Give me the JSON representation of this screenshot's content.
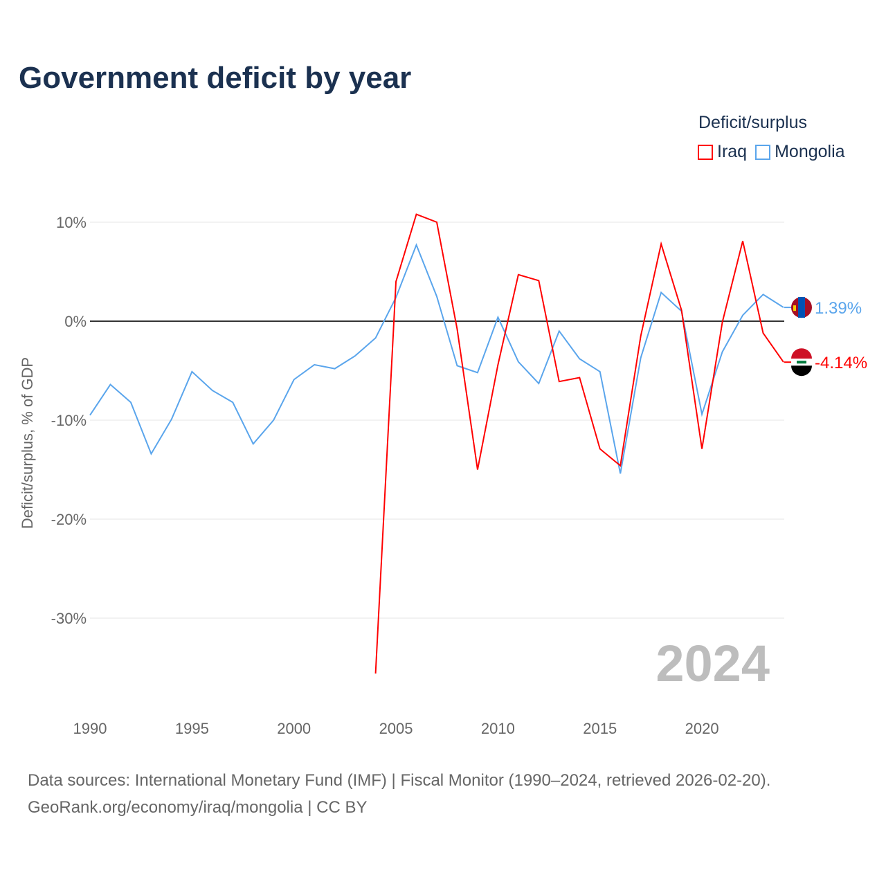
{
  "title": "Government deficit by year",
  "legend": {
    "title": "Deficit/surplus",
    "items": [
      {
        "label": "Iraq",
        "color": "#ff0000"
      },
      {
        "label": "Mongolia",
        "color": "#5aa5ec"
      }
    ]
  },
  "footer": {
    "line1": "Data sources: International Monetary Fund (IMF) | Fiscal Monitor (1990–2024, retrieved 2026-02-20).",
    "line2": "GeoRank.org/economy/iraq/mongolia | CC BY"
  },
  "chart_data": {
    "type": "line",
    "title": "Government deficit by year",
    "ylabel": "Deficit/surplus, % of GDP",
    "xlim": [
      1990,
      2024
    ],
    "ylim": [
      -38,
      13
    ],
    "xticks": [
      1990,
      1995,
      2000,
      2005,
      2010,
      2015,
      2020
    ],
    "yticks": [
      {
        "v": 10,
        "label": "10%"
      },
      {
        "v": 0,
        "label": "0%"
      },
      {
        "v": -10,
        "label": "-10%"
      },
      {
        "v": -20,
        "label": "-20%"
      },
      {
        "v": -30,
        "label": "-30%"
      }
    ],
    "year_watermark": "2024",
    "series": [
      {
        "name": "Iraq",
        "color": "#ff0000",
        "end_label": "-4.14%",
        "x": [
          2004,
          2005,
          2006,
          2007,
          2008,
          2009,
          2010,
          2011,
          2012,
          2013,
          2014,
          2015,
          2016,
          2017,
          2018,
          2019,
          2020,
          2021,
          2022,
          2023,
          2024
        ],
        "values": [
          -35.6,
          4.0,
          10.8,
          10.0,
          -0.8,
          -15.0,
          -4.4,
          4.7,
          4.1,
          -6.1,
          -5.7,
          -12.9,
          -14.6,
          -1.5,
          7.8,
          1.1,
          -12.9,
          -0.1,
          8.1,
          -1.2,
          -4.14
        ]
      },
      {
        "name": "Mongolia",
        "color": "#5aa5ec",
        "end_label": "1.39%",
        "x": [
          1990,
          1991,
          1992,
          1993,
          1994,
          1995,
          1996,
          1997,
          1998,
          1999,
          2000,
          2001,
          2002,
          2003,
          2004,
          2005,
          2006,
          2007,
          2008,
          2009,
          2010,
          2011,
          2012,
          2013,
          2014,
          2015,
          2016,
          2017,
          2018,
          2019,
          2020,
          2021,
          2022,
          2023,
          2024
        ],
        "values": [
          -9.5,
          -6.4,
          -8.2,
          -13.4,
          -9.9,
          -5.1,
          -7.0,
          -8.2,
          -12.4,
          -10.0,
          -5.9,
          -4.4,
          -4.8,
          -3.5,
          -1.7,
          2.4,
          7.7,
          2.5,
          -4.5,
          -5.2,
          0.4,
          -4.1,
          -6.3,
          -1.0,
          -3.8,
          -5.1,
          -15.4,
          -3.7,
          2.9,
          1.0,
          -9.4,
          -3.1,
          0.6,
          2.7,
          1.39
        ]
      }
    ]
  }
}
